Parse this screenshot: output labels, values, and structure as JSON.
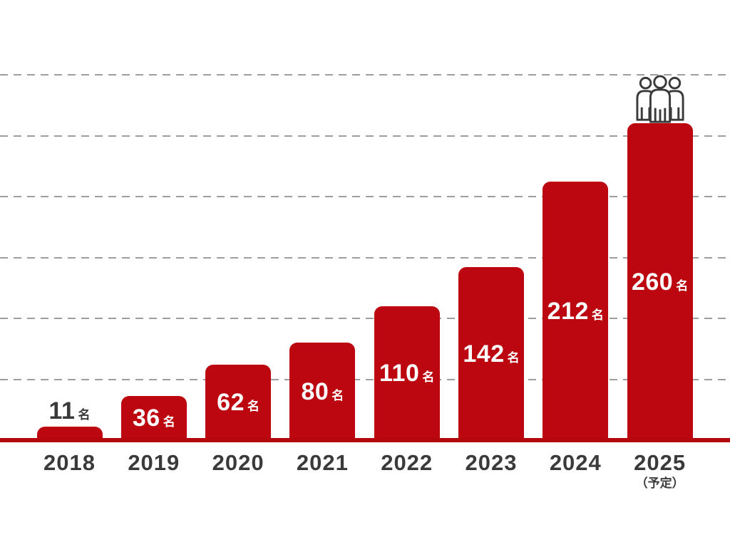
{
  "page": {
    "background": "#ffffff"
  },
  "chart_data": {
    "type": "bar",
    "title": "",
    "xlabel": "",
    "ylabel": "",
    "categories": [
      "2018",
      "2019",
      "2020",
      "2021",
      "2022",
      "2023",
      "2024",
      "2025"
    ],
    "values": [
      11,
      36,
      62,
      80,
      110,
      142,
      212,
      260
    ],
    "value_suffix": "名",
    "category_notes": {
      "2025": "（予定）"
    },
    "ylim": [
      0,
      300
    ],
    "gridlines": [
      50,
      100,
      150,
      200,
      250,
      300
    ],
    "gridline_style": "dashed",
    "legend_position": "none",
    "value_label_placement": "inside bars, except smallest bar (2018) labeled above bar",
    "annotations": {
      "people_group_icon": {
        "above_category": "2025"
      }
    },
    "colors": {
      "bar": "#bc0710",
      "axis_line": "#b5060e",
      "gridline": "#9e9e9e",
      "value_label_inside": "#ffffff",
      "value_label_outside": "#3a3a3a",
      "tick_label": "#3a3a3a",
      "icon_stroke": "#3a3a3a",
      "icon_fill": "#ffffff"
    }
  }
}
